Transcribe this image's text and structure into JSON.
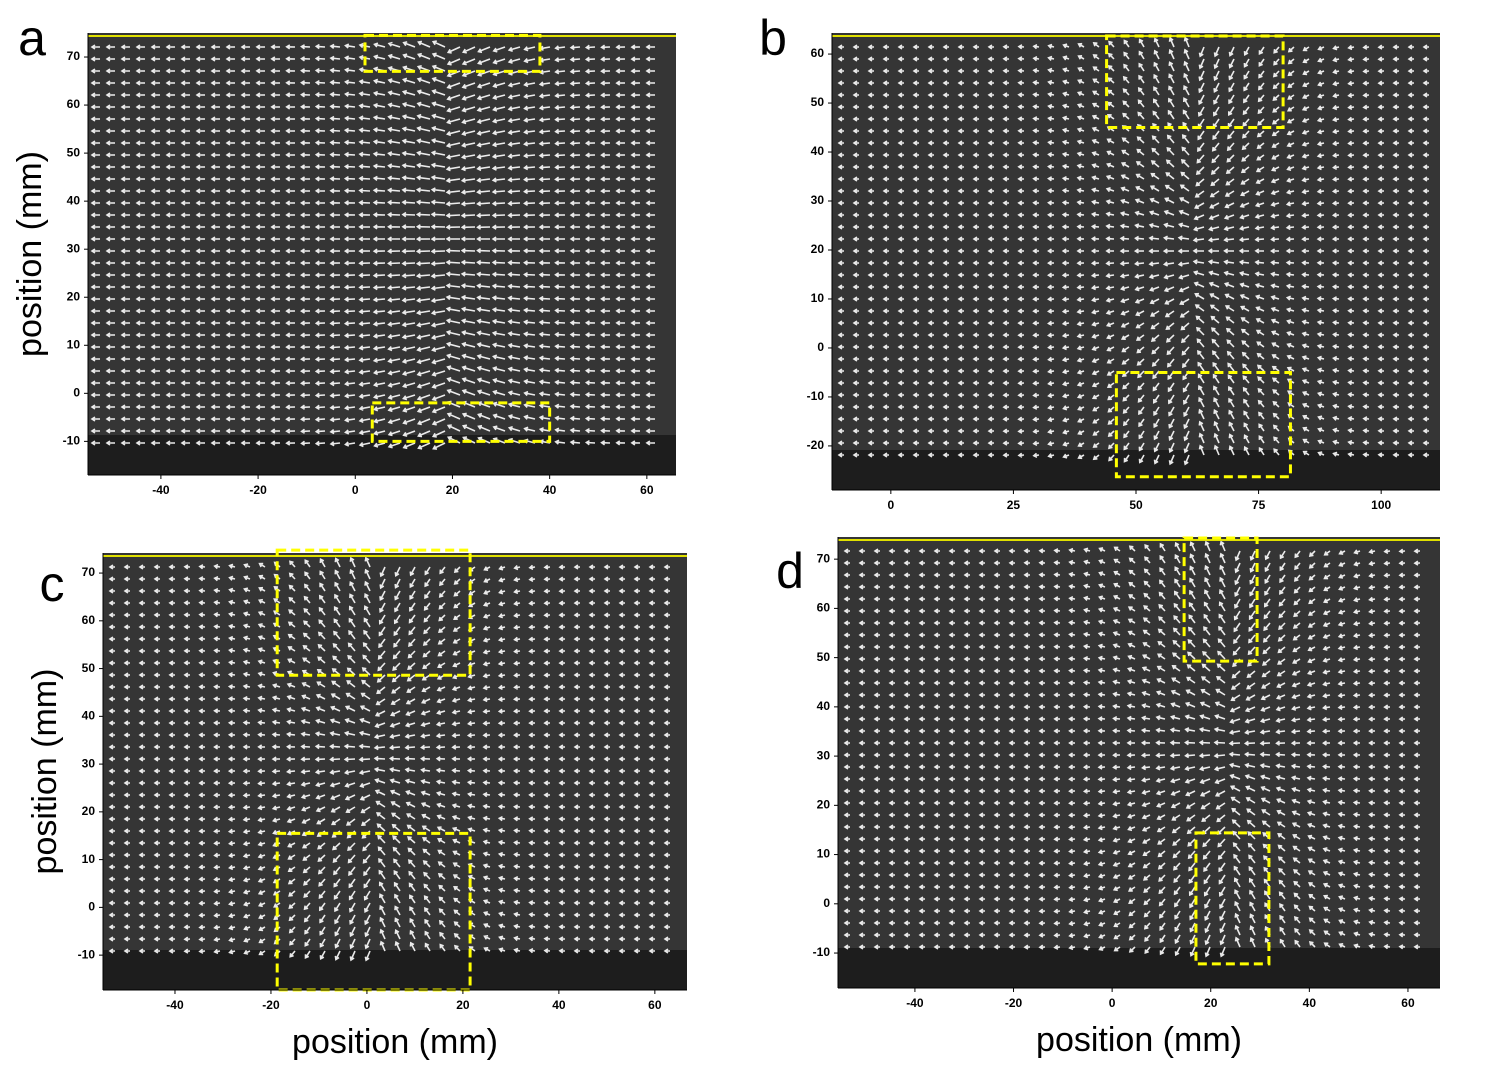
{
  "chart_data": [
    {
      "type": "vector-field",
      "panel": "a",
      "y_label": "position (mm)",
      "xlim": [
        -55,
        66
      ],
      "ylim": [
        -17,
        75
      ],
      "xticks": [
        -40,
        -20,
        0,
        20,
        40,
        60
      ],
      "yticks": [
        -10,
        0,
        10,
        20,
        30,
        40,
        50,
        60,
        70
      ],
      "regions": [
        {
          "x": [
            2,
            38
          ],
          "y": [
            67,
            74.5
          ]
        },
        {
          "x": [
            3.5,
            40
          ],
          "y": [
            -10,
            -2
          ]
        }
      ]
    },
    {
      "type": "vector-field",
      "panel": "b",
      "xlim": [
        -12,
        112
      ],
      "ylim": [
        -29,
        64.3
      ],
      "xticks": [
        0,
        25,
        50,
        75,
        100
      ],
      "yticks": [
        -20,
        -10,
        0,
        10,
        20,
        30,
        40,
        50,
        60
      ],
      "regions": [
        {
          "x": [
            44,
            80
          ],
          "y": [
            45,
            63.7
          ]
        },
        {
          "x": [
            46,
            81.5
          ],
          "y": [
            -26.3,
            -5
          ]
        }
      ]
    },
    {
      "type": "vector-field",
      "panel": "c",
      "y_label": "position (mm)",
      "x_label": "position (mm)",
      "xlim": [
        -55,
        66.7
      ],
      "ylim": [
        -17.3,
        74.2
      ],
      "xticks": [
        -40,
        -20,
        0,
        20,
        40,
        60
      ],
      "yticks": [
        -10,
        0,
        10,
        20,
        30,
        40,
        50,
        60,
        70
      ],
      "regions": [
        {
          "x": [
            -18.7,
            21.5
          ],
          "y": [
            48.6,
            74.8
          ]
        },
        {
          "x": [
            -18.7,
            21.5
          ],
          "y": [
            -17.3,
            15.5
          ]
        }
      ]
    },
    {
      "type": "vector-field",
      "panel": "d",
      "x_label": "position (mm)",
      "xlim": [
        -55.6,
        66.5
      ],
      "ylim": [
        -17.1,
        74.5
      ],
      "xticks": [
        -40,
        -20,
        0,
        20,
        40,
        60
      ],
      "yticks": [
        -10,
        0,
        10,
        20,
        30,
        40,
        50,
        60,
        70
      ],
      "regions": [
        {
          "x": [
            14.6,
            29.4
          ],
          "y": [
            49.3,
            74.3
          ]
        },
        {
          "x": [
            17,
            31.8
          ],
          "y": [
            -12.2,
            14.4
          ]
        }
      ]
    }
  ]
}
